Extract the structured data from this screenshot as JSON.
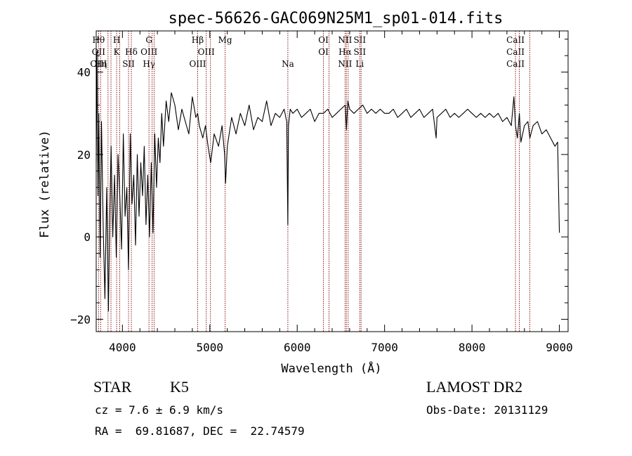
{
  "chart_data": {
    "type": "line",
    "title": "spec-56626-GAC069N25M1_sp01-014.fits",
    "xlabel": "Wavelength (Å)",
    "ylabel": "Flux (relative)",
    "xlim": [
      3700,
      9100
    ],
    "ylim": [
      -23,
      50
    ],
    "xticks": [
      4000,
      5000,
      6000,
      7000,
      8000,
      9000
    ],
    "yticks": [
      -20,
      0,
      20,
      40
    ],
    "grid": false,
    "line_color": "#000000",
    "marker_color": "#8b1a1a",
    "series": [
      {
        "x": [
          3700,
          3710,
          3720,
          3730,
          3745,
          3760,
          3780,
          3800,
          3820,
          3840,
          3855,
          3870,
          3890,
          3910,
          3930,
          3950,
          3970,
          3990,
          4010,
          4030,
          4050,
          4070,
          4090,
          4110,
          4130,
          4150,
          4170,
          4190,
          4210,
          4230,
          4250,
          4270,
          4290,
          4310,
          4330,
          4350,
          4370,
          4390,
          4410,
          4430,
          4450,
          4470,
          4500,
          4530,
          4560,
          4600,
          4640,
          4680,
          4720,
          4760,
          4800,
          4840,
          4861,
          4880,
          4920,
          4950,
          4980,
          5010,
          5050,
          5100,
          5140,
          5170,
          5180,
          5200,
          5250,
          5300,
          5350,
          5400,
          5450,
          5500,
          5550,
          5600,
          5650,
          5700,
          5750,
          5800,
          5850,
          5880,
          5893,
          5900,
          5920,
          5950,
          6000,
          6050,
          6100,
          6150,
          6200,
          6250,
          6300,
          6350,
          6400,
          6450,
          6500,
          6550,
          6563,
          6580,
          6600,
          6650,
          6700,
          6750,
          6800,
          6850,
          6900,
          6950,
          7000,
          7050,
          7100,
          7150,
          7200,
          7250,
          7300,
          7350,
          7400,
          7450,
          7500,
          7550,
          7590,
          7600,
          7650,
          7700,
          7750,
          7800,
          7850,
          7900,
          7950,
          8000,
          8050,
          8100,
          8150,
          8200,
          8250,
          8300,
          8350,
          8400,
          8450,
          8480,
          8498,
          8520,
          8542,
          8560,
          8600,
          8640,
          8662,
          8700,
          8750,
          8800,
          8850,
          8900,
          8950,
          8980,
          9000
        ],
        "y": [
          18,
          45,
          10,
          30,
          -5,
          28,
          2,
          -15,
          12,
          -18,
          5,
          22,
          0,
          15,
          -5,
          20,
          10,
          -3,
          25,
          5,
          12,
          -8,
          25,
          8,
          15,
          -2,
          20,
          5,
          18,
          10,
          22,
          3,
          15,
          0,
          18,
          1,
          25,
          12,
          24,
          18,
          30,
          22,
          33,
          28,
          35,
          32,
          26,
          31,
          28,
          25,
          34,
          29,
          30,
          27,
          24,
          27,
          22,
          18,
          25,
          22,
          27,
          20,
          13,
          22,
          29,
          25,
          30,
          27,
          32,
          26,
          29,
          28,
          33,
          27,
          30,
          29,
          31,
          28,
          3,
          27,
          31,
          30,
          31,
          29,
          30,
          31,
          28,
          30,
          30,
          31,
          29,
          30,
          31,
          32,
          26,
          33,
          31,
          30,
          31,
          32,
          30,
          31,
          30,
          31,
          30,
          30,
          31,
          29,
          30,
          31,
          29,
          30,
          31,
          29,
          30,
          31,
          24,
          29,
          30,
          31,
          29,
          30,
          29,
          30,
          31,
          30,
          29,
          30,
          29,
          30,
          29,
          30,
          28,
          29,
          27,
          34,
          27,
          24,
          30,
          23,
          27,
          28,
          24,
          27,
          28,
          25,
          26,
          24,
          22,
          23,
          1
        ]
      }
    ],
    "lines": [
      {
        "x": 3727,
        "top": [
          "Hθ"
        ],
        "bottom": [
          "OII",
          "OIII"
        ]
      },
      {
        "x": 3751,
        "top": [],
        "bottom": [
          "",
          "Hη"
        ]
      },
      {
        "x": 3835,
        "top": [],
        "bottom": []
      },
      {
        "x": 3869,
        "top": [],
        "bottom": []
      },
      {
        "x": 3934,
        "top": [
          "H"
        ],
        "bottom": [
          "K"
        ]
      },
      {
        "x": 3969,
        "top": [],
        "bottom": []
      },
      {
        "x": 4070,
        "top": [],
        "bottom": [
          "",
          "SII"
        ]
      },
      {
        "x": 4102,
        "top": [],
        "bottom": [
          "Hδ"
        ]
      },
      {
        "x": 4304,
        "top": [
          "G"
        ],
        "bottom": [
          "OIII",
          "Hγ"
        ]
      },
      {
        "x": 4340,
        "top": [],
        "bottom": []
      },
      {
        "x": 4363,
        "top": [],
        "bottom": []
      },
      {
        "x": 4861,
        "top": [
          "Hβ"
        ],
        "bottom": [
          "",
          "OIII"
        ]
      },
      {
        "x": 4959,
        "top": [],
        "bottom": [
          "OIII"
        ]
      },
      {
        "x": 5007,
        "top": [],
        "bottom": []
      },
      {
        "x": 5175,
        "top": [
          "Mg"
        ],
        "bottom": []
      },
      {
        "x": 5893,
        "top": [],
        "bottom": [
          "",
          "Na"
        ]
      },
      {
        "x": 6300,
        "top": [
          "OI"
        ],
        "bottom": [
          "OI"
        ]
      },
      {
        "x": 6364,
        "top": [],
        "bottom": []
      },
      {
        "x": 6548,
        "top": [
          "NII"
        ],
        "bottom": [
          "Hα",
          "NII"
        ]
      },
      {
        "x": 6563,
        "top": [],
        "bottom": []
      },
      {
        "x": 6583,
        "top": [],
        "bottom": []
      },
      {
        "x": 6716,
        "top": [
          "SII"
        ],
        "bottom": [
          "SII",
          "Li"
        ]
      },
      {
        "x": 6731,
        "top": [],
        "bottom": []
      },
      {
        "x": 8498,
        "top": [
          "CaII"
        ],
        "bottom": [
          "CaII",
          "CaII"
        ]
      },
      {
        "x": 8542,
        "top": [],
        "bottom": []
      },
      {
        "x": 8662,
        "top": [],
        "bottom": []
      }
    ]
  },
  "info": {
    "obj_class": "STAR",
    "obj_subclass": "K5",
    "cz": "cz = 7.6 ± 6.9 km/s",
    "radec": "RA =  69.81687, DEC =  22.74579",
    "survey": "LAMOST DR2",
    "obsdate": "Obs-Date: 20131129"
  }
}
